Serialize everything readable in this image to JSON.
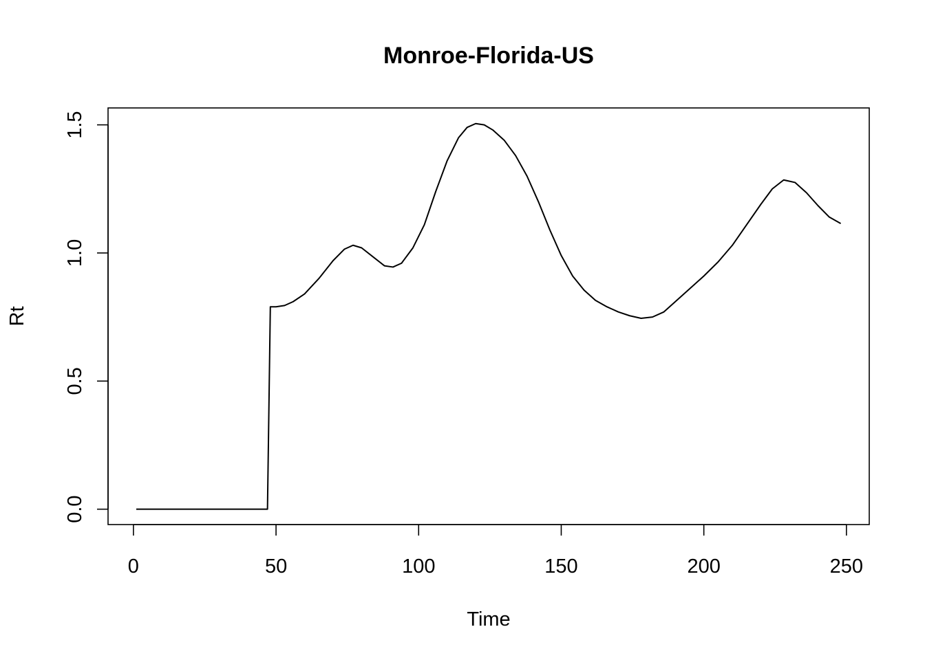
{
  "chart_data": {
    "type": "line",
    "title": "Monroe-Florida-US",
    "xlabel": "Time",
    "ylabel": "Rt",
    "xlim": [
      -8.9,
      258
    ],
    "ylim": [
      -0.06,
      1.566
    ],
    "x_ticks": [
      0,
      50,
      100,
      150,
      200,
      250
    ],
    "y_ticks": [
      0.0,
      0.5,
      1.0,
      1.5
    ],
    "x_tick_labels": [
      "0",
      "50",
      "100",
      "150",
      "200",
      "250"
    ],
    "y_tick_labels": [
      "0.0",
      "0.5",
      "1.0",
      "1.5"
    ],
    "grid": false,
    "legend": "none",
    "series": [
      {
        "color": "#000000",
        "points": [
          [
            1,
            0.0
          ],
          [
            10,
            0.0
          ],
          [
            20,
            0.0
          ],
          [
            30,
            0.0
          ],
          [
            40,
            0.0
          ],
          [
            47,
            0.0
          ],
          [
            48,
            0.79
          ],
          [
            50,
            0.79
          ],
          [
            53,
            0.795
          ],
          [
            56,
            0.81
          ],
          [
            60,
            0.84
          ],
          [
            65,
            0.9
          ],
          [
            70,
            0.97
          ],
          [
            74,
            1.015
          ],
          [
            77,
            1.03
          ],
          [
            80,
            1.02
          ],
          [
            84,
            0.985
          ],
          [
            88,
            0.95
          ],
          [
            91,
            0.945
          ],
          [
            94,
            0.96
          ],
          [
            98,
            1.02
          ],
          [
            102,
            1.11
          ],
          [
            106,
            1.24
          ],
          [
            110,
            1.36
          ],
          [
            114,
            1.45
          ],
          [
            117,
            1.49
          ],
          [
            120,
            1.505
          ],
          [
            123,
            1.5
          ],
          [
            126,
            1.48
          ],
          [
            130,
            1.44
          ],
          [
            134,
            1.38
          ],
          [
            138,
            1.3
          ],
          [
            142,
            1.2
          ],
          [
            146,
            1.09
          ],
          [
            150,
            0.99
          ],
          [
            154,
            0.91
          ],
          [
            158,
            0.855
          ],
          [
            162,
            0.815
          ],
          [
            166,
            0.79
          ],
          [
            170,
            0.77
          ],
          [
            174,
            0.755
          ],
          [
            178,
            0.745
          ],
          [
            182,
            0.75
          ],
          [
            186,
            0.77
          ],
          [
            190,
            0.81
          ],
          [
            195,
            0.86
          ],
          [
            200,
            0.91
          ],
          [
            205,
            0.965
          ],
          [
            210,
            1.03
          ],
          [
            215,
            1.11
          ],
          [
            220,
            1.19
          ],
          [
            224,
            1.25
          ],
          [
            228,
            1.285
          ],
          [
            232,
            1.275
          ],
          [
            236,
            1.235
          ],
          [
            240,
            1.185
          ],
          [
            244,
            1.14
          ],
          [
            248,
            1.115
          ]
        ]
      }
    ]
  }
}
